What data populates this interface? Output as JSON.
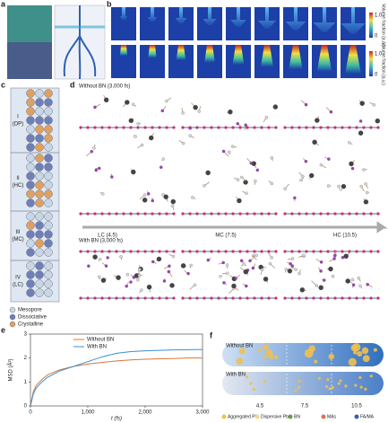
{
  "panel_labels": [
    "a",
    "b",
    "c",
    "d",
    "e",
    "f"
  ],
  "panel_b": {
    "colorbar_label": "Volume fraction (a.u.)",
    "colorbar_max": "1.0",
    "colorbar_min": "0"
  },
  "panel_c": {
    "stages": [
      {
        "numeral": "I",
        "name": "(DP)"
      },
      {
        "numeral": "II",
        "name": "(HC)"
      },
      {
        "numeral": "III",
        "name": "(MC)"
      },
      {
        "numeral": "IV",
        "name": "(LC)"
      }
    ],
    "legend": [
      "Mesopore",
      "Dissociative",
      "Crystalline"
    ]
  },
  "panel_d": {
    "top_title": "Without BN (3,000 fs)",
    "bottom_title": "With BN (3,000 fs)",
    "arrow_labels": [
      "LC (4.5)",
      "MC (7.5)",
      "HC (10.5)"
    ]
  },
  "panel_f": {
    "rows": [
      "Without BN",
      "With BN"
    ],
    "scale": [
      "4.5",
      "7.5",
      "10.5"
    ],
    "legend": [
      "Aggregated Pb",
      "Dispersive Pb",
      "BN",
      "MAs",
      "FA/MA"
    ]
  },
  "chart_data": {
    "type": "line",
    "x_label": "t (fs)",
    "y_label": "MSD (Å²)",
    "x": [
      0,
      50,
      100,
      200,
      300,
      500,
      750,
      1000,
      1250,
      1500,
      1750,
      2000,
      2250,
      2500,
      2750,
      3000
    ],
    "series": [
      {
        "name": "Without BN",
        "color": "#d9763a",
        "values": [
          0,
          0.6,
          0.85,
          1.1,
          1.3,
          1.5,
          1.65,
          1.75,
          1.82,
          1.88,
          1.92,
          1.95,
          1.97,
          1.98,
          2.0,
          2.0
        ]
      },
      {
        "name": "With BN",
        "color": "#3a8fd0",
        "values": [
          0,
          0.5,
          0.75,
          1.0,
          1.2,
          1.45,
          1.65,
          1.85,
          2.05,
          2.2,
          2.27,
          2.3,
          2.32,
          2.34,
          2.35,
          2.36
        ]
      }
    ],
    "xlim": [
      0,
      3000
    ],
    "ylim": [
      0,
      3
    ],
    "xticks": [
      0,
      {
        "value": 1000,
        "label": "1,000"
      },
      {
        "value": 2000,
        "label": "2,000"
      },
      {
        "value": 3000,
        "label": "3,000"
      }
    ],
    "yticks": [
      0,
      1,
      2,
      3
    ]
  }
}
